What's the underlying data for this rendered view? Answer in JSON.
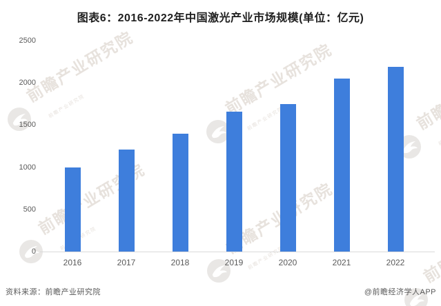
{
  "header": {
    "title": "图表6：2016-2022年中国激光产业市场规模(单位：亿元)"
  },
  "footer": {
    "source": "资料来源：前瞻产业研究院",
    "credit": "@前瞻经济学人APP"
  },
  "watermark": {
    "text": "前瞻产业研究院",
    "subtext": "前瞻产业研究院"
  },
  "colors": {
    "bar": "#3E7EDC",
    "axis_text": "#595959",
    "title_text": "#1F1F1F",
    "baseline": "#D9D9D9",
    "watermark_text": "#E7E2DD",
    "watermark_circle": "#E9E7E5"
  },
  "chart_data": {
    "type": "bar",
    "title": "图表6：2016-2022年中国激光产业市场规模(单位：亿元)",
    "unit": "亿元",
    "categories": [
      "2016",
      "2017",
      "2018",
      "2019",
      "2020",
      "2021",
      "2022"
    ],
    "values": [
      1000,
      1210,
      1400,
      1660,
      1750,
      2050,
      2190
    ],
    "xlabel": "",
    "ylabel": "",
    "ylim": [
      0,
      2500
    ],
    "yticks": [
      0,
      500,
      1000,
      1500,
      2000,
      2500
    ],
    "grid": false,
    "legend_position": "none"
  }
}
